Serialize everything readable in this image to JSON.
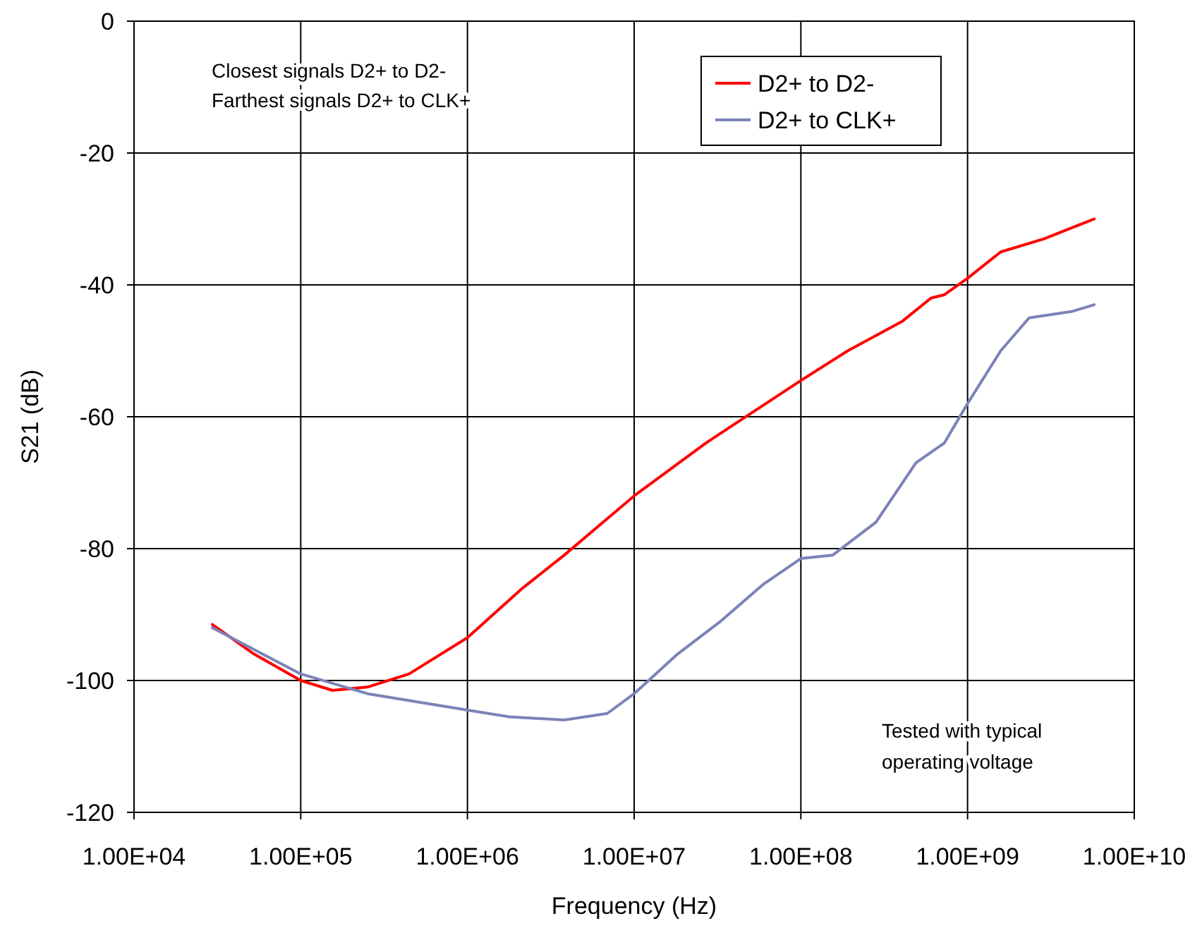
{
  "chart_data": {
    "type": "line",
    "xlabel": "Frequency (Hz)",
    "ylabel": "S21 (dB)",
    "log": "x",
    "grid": true,
    "legend": "top right",
    "marker": "none",
    "line_style": "solid",
    "xlim": [
      10000,
      10000000000
    ],
    "xticks": [
      {
        "value": 10000,
        "label": "1.00E+04"
      },
      {
        "value": 100000,
        "label": "1.00E+05"
      },
      {
        "value": 1000000,
        "label": "1.00E+06"
      },
      {
        "value": 10000000,
        "label": "1.00E+07"
      },
      {
        "value": 100000000,
        "label": "1.00E+08"
      },
      {
        "value": 1000000000,
        "label": "1.00E+09"
      },
      {
        "value": 10000000000,
        "label": "1.00E+10"
      }
    ],
    "ylim": [
      -120,
      0
    ],
    "yticks": [
      -120,
      -100,
      -80,
      -60,
      -40,
      -20,
      0
    ],
    "annotations": [
      "Closest signals D2+ to D2-",
      "Farthest signals D2+ to CLK+",
      "Tested with typical",
      "operating voltage"
    ],
    "series": [
      {
        "name": "D2+ to D2-",
        "color": "#ff0000",
        "x": [
          29500,
          52500,
          100000,
          155000,
          251000,
          447000,
          1000000,
          2140000,
          3800000,
          10000000,
          26900000,
          100000000,
          191000000,
          407000000,
          603000000,
          724000000,
          1000000000,
          1580000000,
          2880000000,
          5750000000
        ],
        "values": [
          -91.5,
          -96,
          -100,
          -101.5,
          -101,
          -99,
          -93.5,
          -86,
          -81,
          -72,
          -64,
          -54.5,
          -50,
          -45.5,
          -42,
          -41.5,
          -39,
          -35,
          -33,
          -30
        ]
      },
      {
        "name": "D2+ to CLK+",
        "color": "#7b83b8",
        "x": [
          29500,
          100000,
          251000,
          1000000,
          1780000,
          3800000,
          6900000,
          10000000,
          18200000,
          33100000,
          58900000,
          100000000,
          155000000,
          282000000,
          490000000,
          724000000,
          1000000000,
          1580000000,
          2340000000,
          4270000000,
          5750000000
        ],
        "values": [
          -92,
          -99,
          -102,
          -104.5,
          -105.5,
          -106,
          -105,
          -102,
          -96,
          -91,
          -85.5,
          -81.5,
          -81,
          -76,
          -67,
          -64,
          -58,
          -50,
          -45,
          -44,
          -43
        ]
      }
    ]
  }
}
